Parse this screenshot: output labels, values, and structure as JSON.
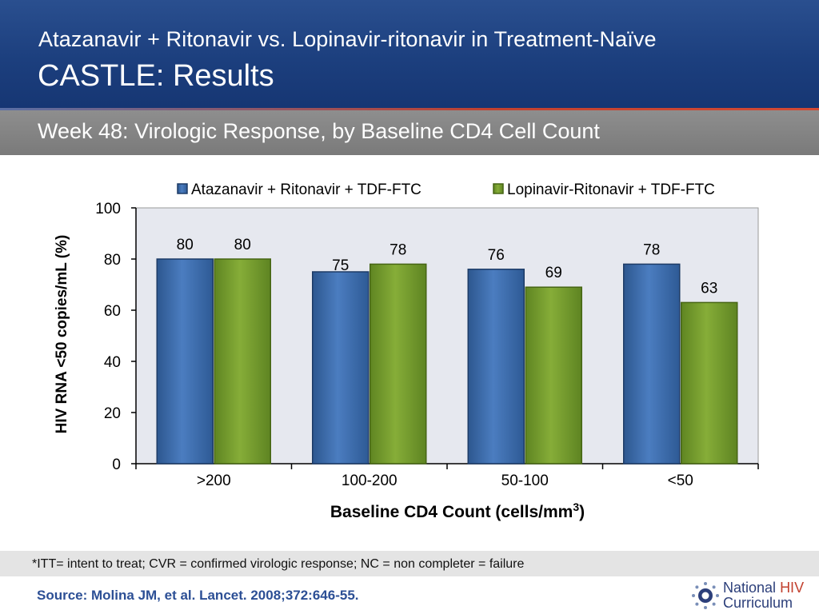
{
  "header": {
    "subtitle": "Atazanavir + Ritonavir vs. Lopinavir-ritonavir in Treatment-Naïve",
    "title": "CASTLE: Results"
  },
  "band": {
    "text": "Week 48: Virologic Response, by Baseline CD4 Cell Count"
  },
  "chart_data": {
    "type": "bar",
    "categories": [
      ">200",
      "100-200",
      "50-100",
      "<50"
    ],
    "series": [
      {
        "name": "Atazanavir + Ritonavir + TDF-FTC",
        "values": [
          80,
          75,
          76,
          78
        ],
        "color": "#3f6fb0"
      },
      {
        "name": "Lopinavir-Ritonavir + TDF-FTC",
        "values": [
          80,
          78,
          69,
          63
        ],
        "color": "#79a02e"
      }
    ],
    "data_labels": [
      [
        "80",
        "75",
        "76",
        "78"
      ],
      [
        "80",
        "78",
        "69",
        "63"
      ]
    ],
    "xlabel": "Baseline CD4 Count (cells/mm",
    "xlabel_sup": "3",
    "xlabel_tail": ")",
    "ylabel": "HIV RNA <50 copies/mL (%)",
    "ylim": [
      0,
      100
    ],
    "yticks": [
      0,
      20,
      40,
      60,
      80,
      100
    ],
    "ytick_labels": [
      "0",
      "20",
      "40",
      "60",
      "80",
      "100"
    ],
    "grid": false,
    "legend_position": "top"
  },
  "footnote": "*ITT= intent to treat; CVR = confirmed virologic response; NC = non completer = failure",
  "source": "Source: Molina JM, et al. Lancet. 2008;372:646-55.",
  "logo": {
    "word1": "National",
    "word2": "HIV",
    "word3": "Curriculum"
  }
}
